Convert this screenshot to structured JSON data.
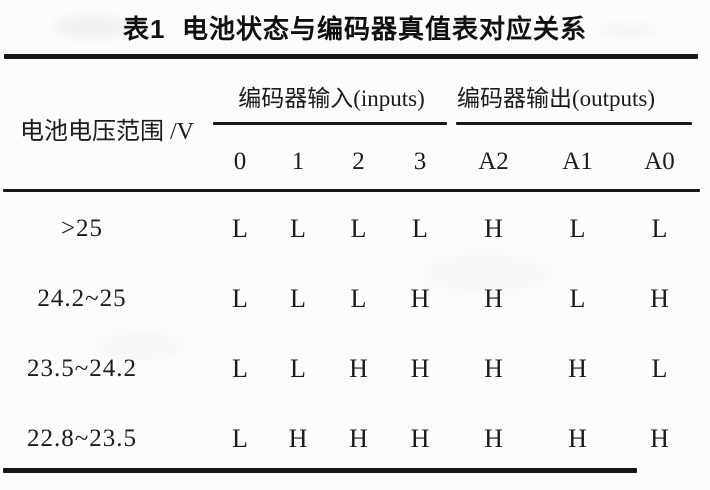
{
  "caption": "表1  电池状态与编码器真值表对应关系",
  "table": {
    "row_header": "电池电压范围 /V",
    "groups": [
      {
        "label": "编码器输入(inputs)",
        "columns": [
          "0",
          "1",
          "2",
          "3"
        ]
      },
      {
        "label": "编码器输出(outputs)",
        "columns": [
          "A2",
          "A1",
          "A0"
        ]
      }
    ],
    "rows": [
      {
        "range": ">25",
        "inputs": [
          "L",
          "L",
          "L",
          "L"
        ],
        "outputs": [
          "H",
          "L",
          "L"
        ]
      },
      {
        "range": "24.2~25",
        "inputs": [
          "L",
          "L",
          "L",
          "H"
        ],
        "outputs": [
          "H",
          "L",
          "H"
        ]
      },
      {
        "range": "23.5~24.2",
        "inputs": [
          "L",
          "L",
          "H",
          "H"
        ],
        "outputs": [
          "H",
          "H",
          "L"
        ]
      },
      {
        "range": "22.8~23.5",
        "inputs": [
          "L",
          "H",
          "H",
          "H"
        ],
        "outputs": [
          "H",
          "H",
          "H"
        ]
      }
    ]
  }
}
